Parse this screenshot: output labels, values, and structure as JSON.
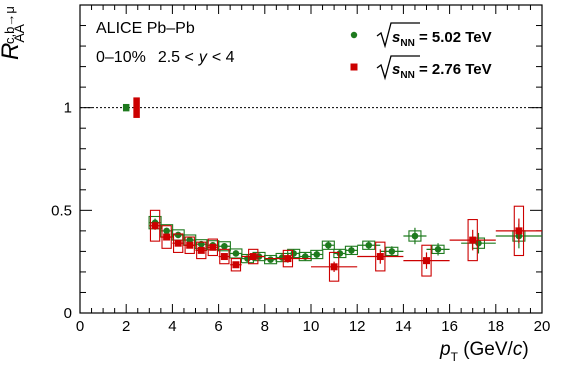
{
  "chart_data": {
    "type": "scatter",
    "title": "",
    "ylabel": {
      "base": "R",
      "sub": "AA",
      "sup": "c,b→μ"
    },
    "xlabel": {
      "p": "p",
      "sub": "T",
      "unit_open": " (GeV/",
      "unit_c": "c",
      "unit_close": ")"
    },
    "xlim": [
      0,
      20
    ],
    "ylim": [
      0,
      1.5
    ],
    "xticks": [
      "0",
      "2",
      "4",
      "6",
      "8",
      "10",
      "12",
      "14",
      "16",
      "18",
      "20"
    ],
    "yticks": [
      "0",
      "0.5",
      "1"
    ],
    "grid": false,
    "reference_line": {
      "y": 1,
      "style": "dotted"
    },
    "annotations": {
      "system": "ALICE Pb–Pb",
      "centrality": "0–10%",
      "rapidity_lo": "2.5 <",
      "rapidity_var": "y",
      "rapidity_hi": "< 4"
    },
    "legend": {
      "placement": "top-right",
      "entries": [
        {
          "prefix": "√",
          "s": "s",
          "sub": "NN",
          "value": " = 5.02 TeV"
        },
        {
          "prefix": "√",
          "s": "s",
          "sub": "NN",
          "value": " = 2.76 TeV"
        }
      ]
    },
    "normalization_boxes": [
      {
        "x": 2.0,
        "y": 1.0,
        "half_width": 0.14,
        "half_height": 0.018,
        "color": "#1e7a1e"
      },
      {
        "x": 2.45,
        "y": 1.0,
        "half_width": 0.14,
        "half_height": 0.05,
        "color": "#cc0000"
      }
    ],
    "series": [
      {
        "name": "5.02 TeV",
        "color": "#1e7a1e",
        "points": [
          {
            "x": 3.25,
            "y": 0.44,
            "xerr": 0.25,
            "yerr": 0.02,
            "sys": 0.03
          },
          {
            "x": 3.75,
            "y": 0.4,
            "xerr": 0.25,
            "yerr": 0.015,
            "sys": 0.03
          },
          {
            "x": 4.25,
            "y": 0.38,
            "xerr": 0.25,
            "yerr": 0.015,
            "sys": 0.025
          },
          {
            "x": 4.75,
            "y": 0.355,
            "xerr": 0.25,
            "yerr": 0.015,
            "sys": 0.025
          },
          {
            "x": 5.25,
            "y": 0.335,
            "xerr": 0.25,
            "yerr": 0.015,
            "sys": 0.022
          },
          {
            "x": 5.75,
            "y": 0.33,
            "xerr": 0.25,
            "yerr": 0.015,
            "sys": 0.022
          },
          {
            "x": 6.25,
            "y": 0.325,
            "xerr": 0.25,
            "yerr": 0.015,
            "sys": 0.022
          },
          {
            "x": 6.75,
            "y": 0.29,
            "xerr": 0.25,
            "yerr": 0.015,
            "sys": 0.022
          },
          {
            "x": 7.25,
            "y": 0.265,
            "xerr": 0.25,
            "yerr": 0.015,
            "sys": 0.02
          },
          {
            "x": 7.75,
            "y": 0.275,
            "xerr": 0.25,
            "yerr": 0.015,
            "sys": 0.02
          },
          {
            "x": 8.25,
            "y": 0.26,
            "xerr": 0.25,
            "yerr": 0.015,
            "sys": 0.02
          },
          {
            "x": 8.75,
            "y": 0.27,
            "xerr": 0.25,
            "yerr": 0.015,
            "sys": 0.02
          },
          {
            "x": 9.25,
            "y": 0.29,
            "xerr": 0.25,
            "yerr": 0.02,
            "sys": 0.02
          },
          {
            "x": 9.75,
            "y": 0.275,
            "xerr": 0.25,
            "yerr": 0.02,
            "sys": 0.02
          },
          {
            "x": 10.25,
            "y": 0.285,
            "xerr": 0.25,
            "yerr": 0.02,
            "sys": 0.02
          },
          {
            "x": 10.75,
            "y": 0.33,
            "xerr": 0.25,
            "yerr": 0.02,
            "sys": 0.02
          },
          {
            "x": 11.25,
            "y": 0.29,
            "xerr": 0.25,
            "yerr": 0.02,
            "sys": 0.02
          },
          {
            "x": 11.75,
            "y": 0.305,
            "xerr": 0.25,
            "yerr": 0.02,
            "sys": 0.02
          },
          {
            "x": 12.5,
            "y": 0.33,
            "xerr": 0.5,
            "yerr": 0.02,
            "sys": 0.02
          },
          {
            "x": 13.5,
            "y": 0.3,
            "xerr": 0.5,
            "yerr": 0.025,
            "sys": 0.02
          },
          {
            "x": 14.5,
            "y": 0.375,
            "xerr": 0.5,
            "yerr": 0.04,
            "sys": 0.025
          },
          {
            "x": 15.5,
            "y": 0.31,
            "xerr": 0.5,
            "yerr": 0.03,
            "sys": 0.02
          },
          {
            "x": 17.25,
            "y": 0.34,
            "xerr": 0.75,
            "yerr": 0.05,
            "sys": 0.025
          },
          {
            "x": 19.0,
            "y": 0.375,
            "xerr": 1.0,
            "yerr": 0.06,
            "sys": 0.025
          }
        ]
      },
      {
        "name": "2.76 TeV",
        "color": "#cc0000",
        "points": [
          {
            "x": 3.25,
            "y": 0.425,
            "xerr": 0.25,
            "yerr": 0.02,
            "sys": 0.075
          },
          {
            "x": 3.75,
            "y": 0.37,
            "xerr": 0.25,
            "yerr": 0.015,
            "sys": 0.055
          },
          {
            "x": 4.25,
            "y": 0.34,
            "xerr": 0.25,
            "yerr": 0.015,
            "sys": 0.045
          },
          {
            "x": 4.75,
            "y": 0.33,
            "xerr": 0.25,
            "yerr": 0.015,
            "sys": 0.04
          },
          {
            "x": 5.25,
            "y": 0.305,
            "xerr": 0.25,
            "yerr": 0.015,
            "sys": 0.04
          },
          {
            "x": 5.75,
            "y": 0.32,
            "xerr": 0.25,
            "yerr": 0.015,
            "sys": 0.04
          },
          {
            "x": 6.25,
            "y": 0.275,
            "xerr": 0.25,
            "yerr": 0.015,
            "sys": 0.035
          },
          {
            "x": 6.75,
            "y": 0.235,
            "xerr": 0.25,
            "yerr": 0.015,
            "sys": 0.03
          },
          {
            "x": 7.5,
            "y": 0.275,
            "xerr": 0.5,
            "yerr": 0.015,
            "sys": 0.035
          },
          {
            "x": 9.0,
            "y": 0.265,
            "xerr": 1.0,
            "yerr": 0.02,
            "sys": 0.04
          },
          {
            "x": 11.0,
            "y": 0.225,
            "xerr": 1.0,
            "yerr": 0.025,
            "sys": 0.07
          },
          {
            "x": 13.0,
            "y": 0.275,
            "xerr": 1.0,
            "yerr": 0.035,
            "sys": 0.07
          },
          {
            "x": 15.0,
            "y": 0.255,
            "xerr": 1.0,
            "yerr": 0.04,
            "sys": 0.075
          },
          {
            "x": 17.0,
            "y": 0.355,
            "xerr": 1.0,
            "yerr": 0.05,
            "sys": 0.1
          },
          {
            "x": 19.0,
            "y": 0.4,
            "xerr": 1.0,
            "yerr": 0.06,
            "sys": 0.12
          }
        ]
      }
    ]
  }
}
